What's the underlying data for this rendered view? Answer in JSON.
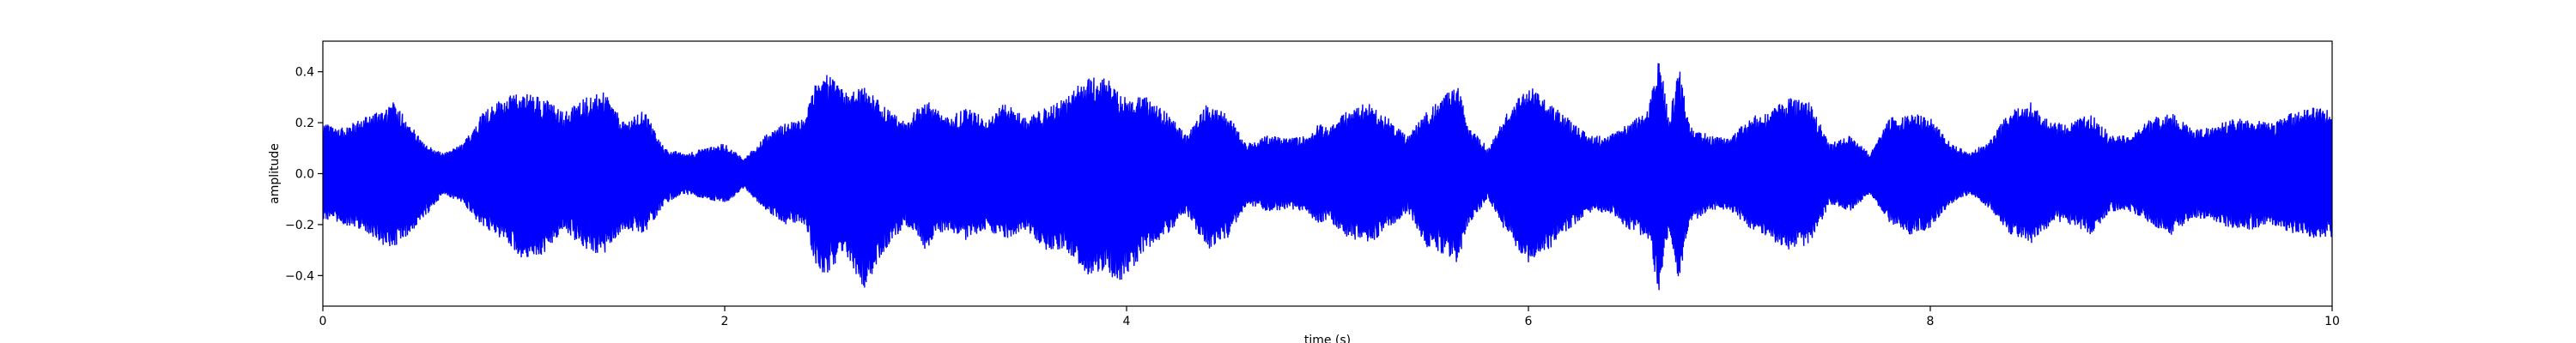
{
  "chart_data": {
    "type": "line",
    "title": "",
    "xlabel": "time (s)",
    "ylabel": "amplitude",
    "xlim": [
      0,
      10
    ],
    "ylim": [
      -0.52,
      0.52
    ],
    "xticks": [
      0,
      2,
      4,
      6,
      8,
      10
    ],
    "xtick_labels": [
      "0",
      "2",
      "4",
      "6",
      "8",
      "10"
    ],
    "yticks": [
      -0.4,
      -0.2,
      0.0,
      0.2,
      0.4
    ],
    "ytick_labels": [
      "−0.4",
      "−0.2",
      "0.0",
      "0.2",
      "0.4"
    ],
    "grid": false,
    "legend": "none",
    "series": [
      {
        "color": "#0000ff",
        "envelope": {
          "x": [
            0.0,
            0.1,
            0.2,
            0.3,
            0.35,
            0.4,
            0.5,
            0.6,
            0.7,
            0.8,
            0.9,
            1.0,
            1.1,
            1.2,
            1.3,
            1.4,
            1.5,
            1.6,
            1.7,
            1.8,
            1.9,
            2.0,
            2.1,
            2.2,
            2.3,
            2.4,
            2.45,
            2.5,
            2.6,
            2.7,
            2.8,
            2.9,
            3.0,
            3.1,
            3.2,
            3.3,
            3.4,
            3.5,
            3.6,
            3.7,
            3.8,
            3.9,
            3.95,
            4.0,
            4.1,
            4.2,
            4.3,
            4.4,
            4.5,
            4.6,
            4.7,
            4.8,
            4.9,
            4.95,
            5.0,
            5.1,
            5.2,
            5.3,
            5.4,
            5.5,
            5.6,
            5.65,
            5.7,
            5.8,
            5.9,
            6.0,
            6.1,
            6.2,
            6.3,
            6.4,
            6.5,
            6.6,
            6.65,
            6.7,
            6.75,
            6.8,
            6.9,
            7.0,
            7.1,
            7.2,
            7.3,
            7.4,
            7.5,
            7.6,
            7.7,
            7.8,
            7.9,
            8.0,
            8.1,
            8.2,
            8.3,
            8.4,
            8.5,
            8.6,
            8.7,
            8.8,
            8.9,
            9.0,
            9.1,
            9.2,
            9.3,
            9.4,
            9.5,
            9.6,
            9.7,
            9.8,
            9.9,
            10.0
          ],
          "upper": [
            0.2,
            0.18,
            0.22,
            0.26,
            0.28,
            0.24,
            0.12,
            0.08,
            0.12,
            0.25,
            0.3,
            0.32,
            0.3,
            0.24,
            0.3,
            0.32,
            0.2,
            0.25,
            0.1,
            0.08,
            0.1,
            0.12,
            0.06,
            0.15,
            0.2,
            0.22,
            0.35,
            0.4,
            0.32,
            0.34,
            0.26,
            0.2,
            0.3,
            0.22,
            0.26,
            0.22,
            0.28,
            0.22,
            0.26,
            0.3,
            0.38,
            0.38,
            0.34,
            0.3,
            0.3,
            0.24,
            0.15,
            0.28,
            0.24,
            0.12,
            0.15,
            0.14,
            0.15,
            0.2,
            0.18,
            0.25,
            0.28,
            0.22,
            0.15,
            0.25,
            0.32,
            0.34,
            0.2,
            0.1,
            0.25,
            0.35,
            0.28,
            0.22,
            0.15,
            0.15,
            0.2,
            0.26,
            0.48,
            0.22,
            0.42,
            0.2,
            0.15,
            0.14,
            0.22,
            0.25,
            0.3,
            0.28,
            0.12,
            0.15,
            0.08,
            0.22,
            0.24,
            0.22,
            0.12,
            0.08,
            0.14,
            0.25,
            0.28,
            0.2,
            0.2,
            0.24,
            0.15,
            0.15,
            0.22,
            0.24,
            0.18,
            0.18,
            0.22,
            0.22,
            0.2,
            0.24,
            0.26,
            0.25
          ],
          "lower": [
            -0.18,
            -0.2,
            -0.22,
            -0.28,
            -0.3,
            -0.26,
            -0.18,
            -0.08,
            -0.12,
            -0.22,
            -0.26,
            -0.34,
            -0.32,
            -0.22,
            -0.3,
            -0.32,
            -0.22,
            -0.24,
            -0.12,
            -0.08,
            -0.1,
            -0.12,
            -0.06,
            -0.14,
            -0.2,
            -0.2,
            -0.35,
            -0.4,
            -0.32,
            -0.46,
            -0.3,
            -0.2,
            -0.3,
            -0.22,
            -0.26,
            -0.22,
            -0.26,
            -0.22,
            -0.3,
            -0.3,
            -0.4,
            -0.38,
            -0.44,
            -0.4,
            -0.3,
            -0.24,
            -0.16,
            -0.3,
            -0.26,
            -0.12,
            -0.15,
            -0.14,
            -0.15,
            -0.2,
            -0.18,
            -0.25,
            -0.28,
            -0.22,
            -0.15,
            -0.3,
            -0.32,
            -0.36,
            -0.2,
            -0.1,
            -0.25,
            -0.35,
            -0.3,
            -0.22,
            -0.16,
            -0.15,
            -0.22,
            -0.26,
            -0.48,
            -0.22,
            -0.44,
            -0.2,
            -0.15,
            -0.14,
            -0.22,
            -0.26,
            -0.3,
            -0.28,
            -0.12,
            -0.15,
            -0.08,
            -0.2,
            -0.24,
            -0.22,
            -0.12,
            -0.08,
            -0.14,
            -0.24,
            -0.28,
            -0.2,
            -0.2,
            -0.24,
            -0.15,
            -0.15,
            -0.2,
            -0.24,
            -0.18,
            -0.18,
            -0.22,
            -0.22,
            -0.2,
            -0.24,
            -0.26,
            -0.25
          ]
        }
      }
    ]
  }
}
